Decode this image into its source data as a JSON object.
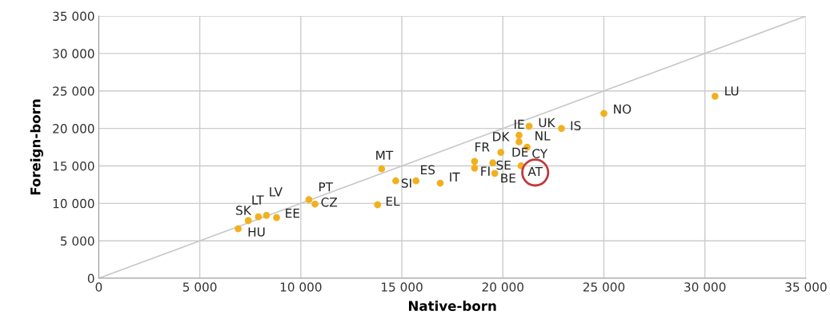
{
  "chart_data": {
    "type": "scatter",
    "xlabel": "Native-born",
    "ylabel": "Foreign-born",
    "xlim": [
      0,
      35000
    ],
    "ylim": [
      0,
      35000
    ],
    "xticks": [
      0,
      {
        "value": 5000,
        "label": "5 000"
      },
      {
        "value": 10000,
        "label": "10 000"
      },
      {
        "value": 15000,
        "label": "15 000"
      },
      {
        "value": 20000,
        "label": "20 000"
      },
      {
        "value": 25000,
        "label": "25 000"
      },
      {
        "value": 30000,
        "label": "30 000"
      },
      {
        "value": 35000,
        "label": "35 000"
      }
    ],
    "yticks": [
      0,
      {
        "value": 5000,
        "label": "5 000"
      },
      {
        "value": 10000,
        "label": "10 000"
      },
      {
        "value": 15000,
        "label": "15 000"
      },
      {
        "value": 20000,
        "label": "20 000"
      },
      {
        "value": 25000,
        "label": "25 000"
      },
      {
        "value": 30000,
        "label": "30 000"
      },
      {
        "value": 35000,
        "label": "35 000"
      }
    ],
    "grid": true,
    "marker": "circle",
    "series": [
      {
        "type": "line",
        "marker": "none",
        "color": "#c8c8c8",
        "x": [
          0,
          35000
        ],
        "values": [
          0,
          35000
        ]
      },
      {
        "color": "#f2b01e",
        "x": [
          30500,
          25000,
          22900,
          21300,
          20800,
          20800,
          21200,
          19900,
          18600,
          18600,
          19500,
          20900,
          19600,
          14000,
          14700,
          15700,
          16900,
          13800,
          10400,
          10700,
          7400,
          7900,
          8300,
          8800,
          6900
        ],
        "values": [
          24300,
          22000,
          20000,
          20300,
          19100,
          18200,
          17500,
          16800,
          15600,
          14700,
          15400,
          15000,
          14000,
          14600,
          13000,
          13000,
          12700,
          9800,
          10500,
          9900,
          7700,
          8200,
          8400,
          8100,
          6600
        ]
      }
    ],
    "annotations": [
      {
        "text": "LU",
        "x": 30500,
        "y": 24300
      },
      {
        "text": "NO",
        "x": 25000,
        "y": 22000
      },
      {
        "text": "IS",
        "x": 22900,
        "y": 20000
      },
      {
        "text": "IE",
        "x": 21300,
        "y": 20300
      },
      {
        "text": "UK",
        "x": 21300,
        "y": 20300
      },
      {
        "text": "DK",
        "x": 20800,
        "y": 19100
      },
      {
        "text": "NL",
        "x": 20800,
        "y": 18200
      },
      {
        "text": "CY",
        "x": 21200,
        "y": 17500
      },
      {
        "text": "DE",
        "x": 19900,
        "y": 16800
      },
      {
        "text": "FR",
        "x": 18600,
        "y": 15600
      },
      {
        "text": "FI",
        "x": 18600,
        "y": 14700
      },
      {
        "text": "SE",
        "x": 19500,
        "y": 15400
      },
      {
        "text": "AT",
        "x": 20900,
        "y": 15000
      },
      {
        "text": "BE",
        "x": 19600,
        "y": 14000
      },
      {
        "text": "MT",
        "x": 14000,
        "y": 14600
      },
      {
        "text": "SI",
        "x": 14700,
        "y": 13000
      },
      {
        "text": "ES",
        "x": 15700,
        "y": 13000
      },
      {
        "text": "IT",
        "x": 16900,
        "y": 12700
      },
      {
        "text": "EL",
        "x": 13800,
        "y": 9800
      },
      {
        "text": "PT",
        "x": 10400,
        "y": 10500
      },
      {
        "text": "CZ",
        "x": 10700,
        "y": 9900
      },
      {
        "text": "SK",
        "x": 7400,
        "y": 7700
      },
      {
        "text": "LT",
        "x": 7900,
        "y": 8200
      },
      {
        "text": "LV",
        "x": 8300,
        "y": 8400
      },
      {
        "text": "EE",
        "x": 8800,
        "y": 8100
      },
      {
        "text": "HU",
        "x": 6900,
        "y": 6600
      }
    ]
  }
}
